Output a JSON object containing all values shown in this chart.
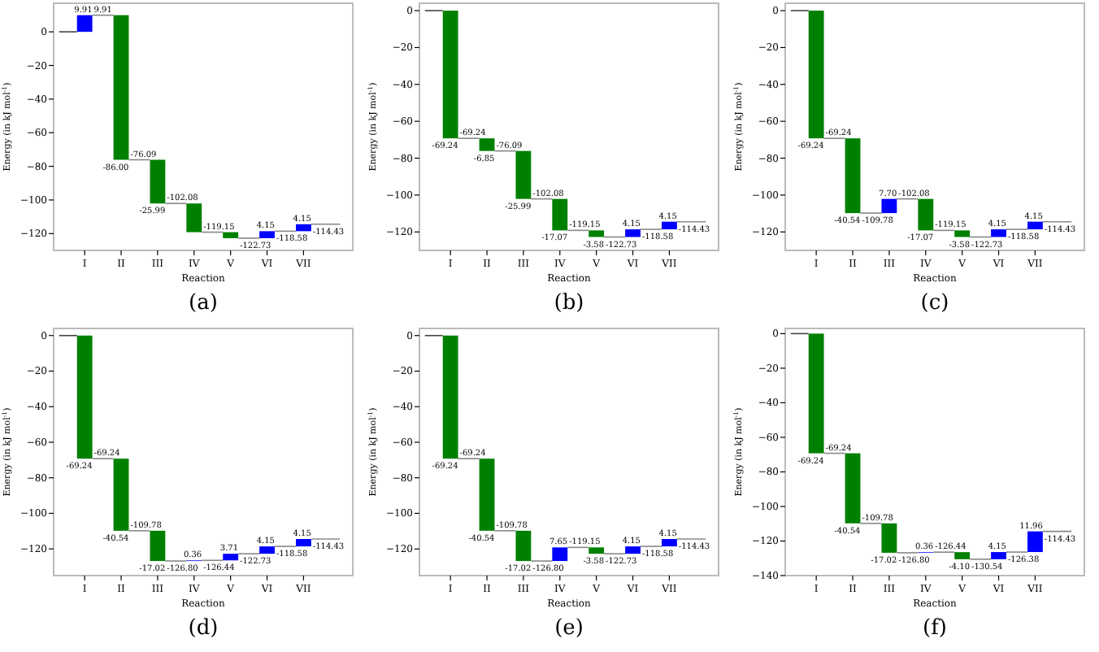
{
  "chart_data": [
    {
      "type": "bar",
      "title": "(a)",
      "xlabel": "Reaction",
      "ylabel": "Energy (in kJ mol$^{-1}$)",
      "categories": [
        "I",
        "II",
        "III",
        "IV",
        "V",
        "VI",
        "VII"
      ],
      "base": [
        0,
        9.91,
        -76.09,
        -102.08,
        -119.15,
        -122.73,
        -118.58
      ],
      "values": [
        9.91,
        -86.0,
        -25.99,
        -17.07,
        -3.58,
        4.15,
        4.15
      ],
      "colors": [
        "#0000ff",
        "#008000",
        "#008000",
        "#008000",
        "#008000",
        "#0000ff",
        "#0000ff"
      ],
      "value_labels": [
        "9.91",
        "-86.00",
        "-25.99",
        null,
        null,
        "4.15",
        "4.15"
      ],
      "annotations": [
        {
          "text": "9.91",
          "x": "I",
          "y": 9.91
        },
        {
          "text": "-76.09",
          "x": "II",
          "y": -76.09
        },
        {
          "text": "-102.08",
          "x": "III",
          "y": -102.08
        },
        {
          "text": "-119.15",
          "x": "IV",
          "y": -119.15
        },
        {
          "text": "-122.73",
          "x": "V",
          "y": -122.73
        },
        {
          "text": "-118.58",
          "x": "VI",
          "y": -118.58
        },
        {
          "text": "-114.43",
          "x": "VII",
          "y": -114.43
        }
      ],
      "ylim": [
        -130,
        17
      ],
      "yticks": [
        {
          "value": 0,
          "label": "0"
        },
        {
          "value": -20,
          "label": "−20"
        },
        {
          "value": -40,
          "label": "−40"
        },
        {
          "value": -60,
          "label": "−60"
        },
        {
          "value": -80,
          "label": "−80"
        },
        {
          "value": -100,
          "label": "−100"
        },
        {
          "value": -120,
          "label": "−120"
        }
      ]
    },
    {
      "type": "bar",
      "title": "(b)",
      "xlabel": "Reaction",
      "ylabel": "Energy (in kJ mol$^{-1}$)",
      "categories": [
        "I",
        "II",
        "III",
        "IV",
        "V",
        "VI",
        "VII"
      ],
      "base": [
        0,
        -69.24,
        -76.09,
        -102.08,
        -119.15,
        -122.73,
        -118.58
      ],
      "values": [
        -69.24,
        -6.85,
        -25.99,
        -17.07,
        -3.58,
        4.15,
        4.15
      ],
      "colors": [
        "#008000",
        "#008000",
        "#008000",
        "#008000",
        "#008000",
        "#0000ff",
        "#0000ff"
      ],
      "value_labels": [
        "-69.24",
        "-6.85",
        "-25.99",
        "-17.07",
        "-3.58",
        "4.15",
        "4.15"
      ],
      "annotations": [
        {
          "text": "-69.24",
          "x": "I",
          "y": -69.24
        },
        {
          "text": "-76.09",
          "x": "II",
          "y": -76.09
        },
        {
          "text": "-102.08",
          "x": "III",
          "y": -102.08
        },
        {
          "text": "-119.15",
          "x": "IV",
          "y": -119.15
        },
        {
          "text": "-122.73",
          "x": "V",
          "y": -122.73
        },
        {
          "text": "-118.58",
          "x": "VI",
          "y": -118.58
        },
        {
          "text": "-114.43",
          "x": "VII",
          "y": -114.43
        }
      ],
      "ylim": [
        -130,
        4
      ],
      "yticks": [
        {
          "value": 0,
          "label": "0"
        },
        {
          "value": -20,
          "label": "−20"
        },
        {
          "value": -40,
          "label": "−40"
        },
        {
          "value": -60,
          "label": "−60"
        },
        {
          "value": -80,
          "label": "−80"
        },
        {
          "value": -100,
          "label": "−100"
        },
        {
          "value": -120,
          "label": "−120"
        }
      ]
    },
    {
      "type": "bar",
      "title": "(c)",
      "xlabel": "Reaction",
      "ylabel": "Energy (in kJ mol$^{-1}$)",
      "categories": [
        "I",
        "II",
        "III",
        "IV",
        "V",
        "VI",
        "VII"
      ],
      "base": [
        0,
        -69.24,
        -109.78,
        -102.08,
        -119.15,
        -122.73,
        -118.58
      ],
      "values": [
        -69.24,
        -40.54,
        7.7,
        -17.07,
        -3.58,
        4.15,
        4.15
      ],
      "colors": [
        "#008000",
        "#008000",
        "#0000ff",
        "#008000",
        "#008000",
        "#0000ff",
        "#0000ff"
      ],
      "value_labels": [
        "-69.24",
        "-40.54",
        "7.70",
        "-17.07",
        "-3.58",
        "4.15",
        "4.15"
      ],
      "annotations": [
        {
          "text": "-69.24",
          "x": "I",
          "y": -69.24
        },
        {
          "text": "-109.78",
          "x": "II",
          "y": -109.78
        },
        {
          "text": "-102.08",
          "x": "III",
          "y": -102.08
        },
        {
          "text": "-119.15",
          "x": "IV",
          "y": -119.15
        },
        {
          "text": "-122.73",
          "x": "V",
          "y": -122.73
        },
        {
          "text": "-118.58",
          "x": "VI",
          "y": -118.58
        },
        {
          "text": "-114.43",
          "x": "VII",
          "y": -114.43
        }
      ],
      "ylim": [
        -130,
        4
      ],
      "yticks": [
        {
          "value": 0,
          "label": "0"
        },
        {
          "value": -20,
          "label": "−20"
        },
        {
          "value": -40,
          "label": "−40"
        },
        {
          "value": -60,
          "label": "−60"
        },
        {
          "value": -80,
          "label": "−80"
        },
        {
          "value": -100,
          "label": "−100"
        },
        {
          "value": -120,
          "label": "−120"
        }
      ]
    },
    {
      "type": "bar",
      "title": "(d)",
      "xlabel": "Reaction",
      "ylabel": "Energy (in kJ mol$^{-1}$)",
      "categories": [
        "I",
        "II",
        "III",
        "IV",
        "V",
        "VI",
        "VII"
      ],
      "base": [
        0,
        -69.24,
        -109.78,
        -126.8,
        -126.44,
        -122.73,
        -118.58
      ],
      "values": [
        -69.24,
        -40.54,
        -17.02,
        0.36,
        3.71,
        4.15,
        4.15
      ],
      "colors": [
        "#008000",
        "#008000",
        "#008000",
        "#0000ff",
        "#0000ff",
        "#0000ff",
        "#0000ff"
      ],
      "value_labels": [
        "-69.24",
        "-40.54",
        "-17.02",
        "0.36",
        "3.71",
        "4.15",
        "4.15"
      ],
      "annotations": [
        {
          "text": "-69.24",
          "x": "I",
          "y": -69.24
        },
        {
          "text": "-109.78",
          "x": "II",
          "y": -109.78
        },
        {
          "text": "-126.80",
          "x": "III",
          "y": -126.8
        },
        {
          "text": "-126.44",
          "x": "IV",
          "y": -126.44
        },
        {
          "text": "-122.73",
          "x": "V",
          "y": -122.73
        },
        {
          "text": "-118.58",
          "x": "VI",
          "y": -118.58
        },
        {
          "text": "-114.43",
          "x": "VII",
          "y": -114.43
        }
      ],
      "ylim": [
        -135,
        4
      ],
      "yticks": [
        {
          "value": 0,
          "label": "0"
        },
        {
          "value": -20,
          "label": "−20"
        },
        {
          "value": -40,
          "label": "−40"
        },
        {
          "value": -60,
          "label": "−60"
        },
        {
          "value": -80,
          "label": "−80"
        },
        {
          "value": -100,
          "label": "−100"
        },
        {
          "value": -120,
          "label": "−120"
        }
      ]
    },
    {
      "type": "bar",
      "title": "(e)",
      "xlabel": "Reaction",
      "ylabel": "Energy (in kJ mol$^{-1}$)",
      "categories": [
        "I",
        "II",
        "III",
        "IV",
        "V",
        "VI",
        "VII"
      ],
      "base": [
        0,
        -69.24,
        -109.78,
        -126.8,
        -119.15,
        -122.73,
        -118.58
      ],
      "values": [
        -69.24,
        -40.54,
        -17.02,
        7.65,
        -3.58,
        4.15,
        4.15
      ],
      "colors": [
        "#008000",
        "#008000",
        "#008000",
        "#0000ff",
        "#008000",
        "#0000ff",
        "#0000ff"
      ],
      "value_labels": [
        "-69.24",
        "-40.54",
        "-17.02",
        "7.65",
        "-3.58",
        "4.15",
        "4.15"
      ],
      "annotations": [
        {
          "text": "-69.24",
          "x": "I",
          "y": -69.24
        },
        {
          "text": "-109.78",
          "x": "II",
          "y": -109.78
        },
        {
          "text": "-126.80",
          "x": "III",
          "y": -126.8
        },
        {
          "text": "-119.15",
          "x": "IV",
          "y": -119.15
        },
        {
          "text": "-122.73",
          "x": "V",
          "y": -122.73
        },
        {
          "text": "-118.58",
          "x": "VI",
          "y": -118.58
        },
        {
          "text": "-114.43",
          "x": "VII",
          "y": -114.43
        }
      ],
      "ylim": [
        -135,
        4
      ],
      "yticks": [
        {
          "value": 0,
          "label": "0"
        },
        {
          "value": -20,
          "label": "−20"
        },
        {
          "value": -40,
          "label": "−40"
        },
        {
          "value": -60,
          "label": "−60"
        },
        {
          "value": -80,
          "label": "−80"
        },
        {
          "value": -100,
          "label": "−100"
        },
        {
          "value": -120,
          "label": "−120"
        }
      ]
    },
    {
      "type": "bar",
      "title": "(f)",
      "xlabel": "Reaction",
      "ylabel": "Energy (in kJ mol$^{-1}$)",
      "categories": [
        "I",
        "II",
        "III",
        "IV",
        "V",
        "VI",
        "VII"
      ],
      "base": [
        0,
        -69.24,
        -109.78,
        -126.8,
        -126.44,
        -130.54,
        -126.38
      ],
      "values": [
        -69.24,
        -40.54,
        -17.02,
        0.36,
        -4.1,
        4.15,
        11.96
      ],
      "colors": [
        "#008000",
        "#008000",
        "#008000",
        "#0000ff",
        "#008000",
        "#0000ff",
        "#0000ff"
      ],
      "value_labels": [
        "-69.24",
        "-40.54",
        "-17.02",
        "0.36",
        "-4.10",
        "4.15",
        "11.96"
      ],
      "annotations": [
        {
          "text": "-69.24",
          "x": "I",
          "y": -69.24
        },
        {
          "text": "-109.78",
          "x": "II",
          "y": -109.78
        },
        {
          "text": "-126.80",
          "x": "III",
          "y": -126.8
        },
        {
          "text": "-126.44",
          "x": "IV",
          "y": -126.44
        },
        {
          "text": "-130.54",
          "x": "V",
          "y": -130.54
        },
        {
          "text": "-126.38",
          "x": "VI",
          "y": -126.38
        },
        {
          "text": "-114.43",
          "x": "VII",
          "y": -114.43
        }
      ],
      "ylim": [
        -140,
        3
      ],
      "yticks": [
        {
          "value": 0,
          "label": "0"
        },
        {
          "value": -20,
          "label": "−20"
        },
        {
          "value": -40,
          "label": "−40"
        },
        {
          "value": -60,
          "label": "−60"
        },
        {
          "value": -80,
          "label": "−80"
        },
        {
          "value": -100,
          "label": "−100"
        },
        {
          "value": -120,
          "label": "−120"
        },
        {
          "value": -140,
          "label": "−140"
        }
      ]
    }
  ]
}
